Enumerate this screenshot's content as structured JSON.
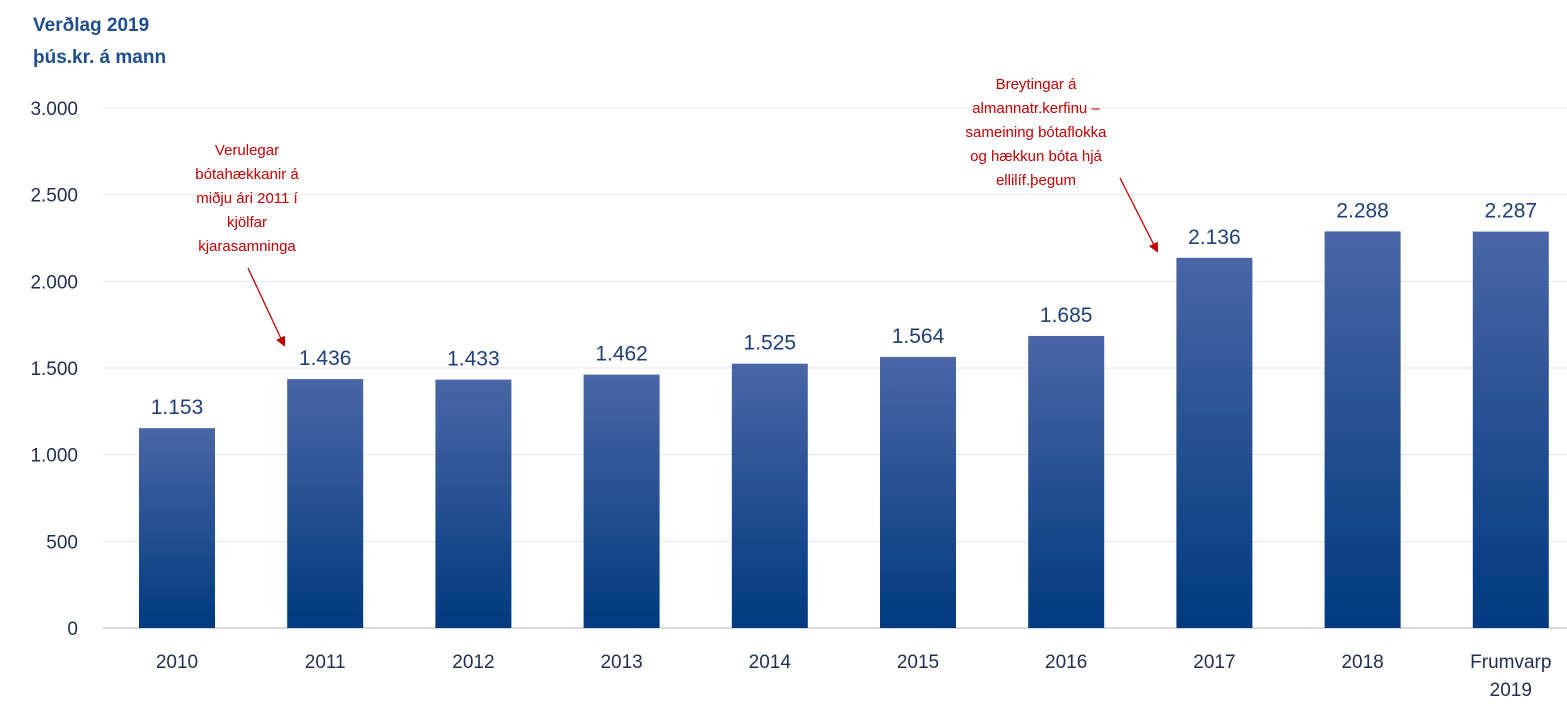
{
  "chart_data": {
    "type": "bar",
    "title_lines": [
      "Verðlag 2019",
      "þús.kr. á mann"
    ],
    "categories": [
      [
        "2010"
      ],
      [
        "2011"
      ],
      [
        "2012"
      ],
      [
        "2013"
      ],
      [
        "2014"
      ],
      [
        "2015"
      ],
      [
        "2016"
      ],
      [
        "2017"
      ],
      [
        "2018"
      ],
      [
        "Frumvarp",
        "2019"
      ]
    ],
    "values": [
      1153,
      1436,
      1433,
      1462,
      1525,
      1564,
      1685,
      2136,
      2288,
      2287
    ],
    "value_labels": [
      "1.153",
      "1.436",
      "1.433",
      "1.462",
      "1.525",
      "1.564",
      "1.685",
      "2.136",
      "2.288",
      "2.287"
    ],
    "ylim": [
      0,
      3000
    ],
    "yticks": [
      0,
      500,
      1000,
      1500,
      2000,
      2500,
      3000
    ],
    "ytick_labels": [
      "0",
      "500",
      "1.000",
      "1.500",
      "2.000",
      "2.500",
      "3.000"
    ],
    "grid": true,
    "colors": {
      "bar_top": "#4a66a6",
      "bar_bottom": "#003a80",
      "annotation": "#c00000",
      "grid": "#e6e6e6"
    },
    "annotations": [
      {
        "target_category": 1,
        "lines": [
          "Verulegar",
          "bótahækkanir á",
          "miðju ári 2011 í",
          "kjölfar",
          "kjarasamninga"
        ]
      },
      {
        "target_category": 7,
        "lines": [
          "Breytingar á",
          "almannatr.kerfinu –",
          "sameining bótaflokka",
          "og hækkun bóta hjá",
          "ellilíf.þegum"
        ]
      }
    ]
  }
}
